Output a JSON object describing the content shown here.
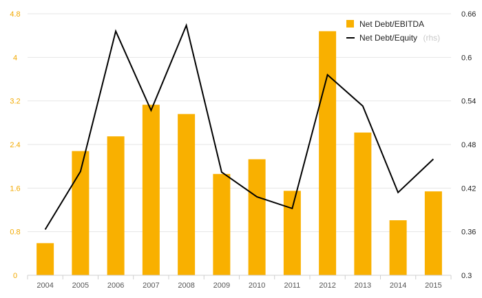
{
  "chart_data": {
    "type": "bar",
    "categories": [
      "2004",
      "2005",
      "2006",
      "2007",
      "2008",
      "2009",
      "2010",
      "2011",
      "2012",
      "2013",
      "2014",
      "2015"
    ],
    "series": [
      {
        "name": "Net Debt/EBITDA",
        "type": "bar",
        "axis": "left",
        "color": "#f9b000",
        "values": [
          0.59,
          2.28,
          2.55,
          3.13,
          2.96,
          1.86,
          2.13,
          1.55,
          4.48,
          2.62,
          1.01,
          1.54
        ]
      },
      {
        "name": "Net Debt/Equity",
        "type": "line",
        "axis": "right",
        "color": "#000000",
        "values": [
          0.363,
          0.443,
          0.636,
          0.527,
          0.644,
          0.442,
          0.408,
          0.392,
          0.576,
          0.533,
          0.414,
          0.46
        ]
      }
    ],
    "legend_entries": [
      {
        "label": "Net Debt/EBITDA",
        "suffix": ""
      },
      {
        "label": "Net Debt/Equity",
        "suffix": "(rhs)"
      }
    ],
    "left_axis": {
      "range": [
        0,
        4.8
      ],
      "ticks": [
        "0",
        "0.8",
        "1.6",
        "2.4",
        "3.2",
        "4",
        "4.8"
      ]
    },
    "right_axis": {
      "range": [
        0.3,
        0.66
      ],
      "ticks": [
        "0.3",
        "0.36",
        "0.42",
        "0.48",
        "0.54",
        "0.6",
        "0.66"
      ]
    },
    "grid": true,
    "legend_position": "top-right"
  }
}
